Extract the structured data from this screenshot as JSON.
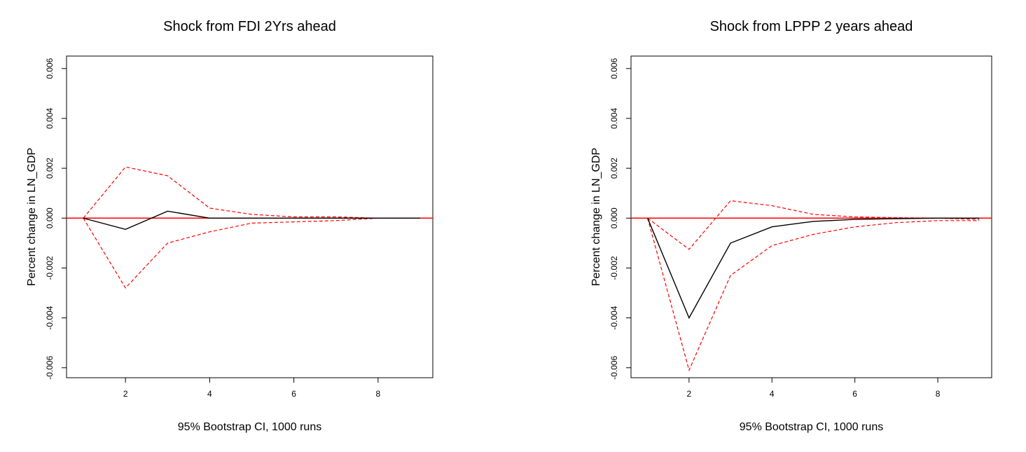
{
  "chart_data": [
    {
      "type": "line",
      "title": "Shock from FDI 2Yrs ahead",
      "xlabel": "95% Bootstrap CI,  1000 runs",
      "ylabel": "Percent change in LN_GDP",
      "xlim": [
        0.6,
        9.3
      ],
      "ylim": [
        -0.0064,
        0.0065
      ],
      "xticks": [
        2,
        4,
        6,
        8
      ],
      "xtick_labels": [
        "2",
        "4",
        "6",
        "8"
      ],
      "yticks": [
        -0.006,
        -0.004,
        -0.002,
        0,
        0.002,
        0.004,
        0.006
      ],
      "ytick_labels": [
        "-0.006",
        "-0.004",
        "-0.002",
        "0.000",
        "0.002",
        "0.004",
        "0.006"
      ],
      "grid": false,
      "reference_line": {
        "y": 0,
        "color": "#ff0000"
      },
      "x": [
        1,
        2,
        3,
        4,
        5,
        6,
        7,
        8,
        9
      ],
      "series": [
        {
          "role": "response",
          "color": "#000000",
          "style": "solid",
          "values": [
            0,
            -0.00045,
            0.00028,
            0,
            0,
            0,
            0,
            0,
            0
          ]
        },
        {
          "role": "upper",
          "color": "#ff0000",
          "style": "dashed",
          "values": [
            0,
            0.00205,
            0.0017,
            0.0004,
            0.00015,
            5e-05,
            5e-05,
            0,
            0
          ]
        },
        {
          "role": "lower",
          "color": "#ff0000",
          "style": "dashed",
          "values": [
            0,
            -0.0028,
            -0.001,
            -0.00055,
            -0.0002,
            -0.00015,
            -0.0001,
            0,
            0
          ]
        }
      ]
    },
    {
      "type": "line",
      "title": "Shock from LPPP 2 years ahead",
      "xlabel": "95% Bootstrap CI,  1000 runs",
      "ylabel": "Percent change in LN_GDP",
      "xlim": [
        0.6,
        9.3
      ],
      "ylim": [
        -0.0064,
        0.0065
      ],
      "xticks": [
        2,
        4,
        6,
        8
      ],
      "xtick_labels": [
        "2",
        "4",
        "6",
        "8"
      ],
      "yticks": [
        -0.006,
        -0.004,
        -0.002,
        0,
        0.002,
        0.004,
        0.006
      ],
      "ytick_labels": [
        "-0.006",
        "-0.004",
        "-0.002",
        "0.000",
        "0.002",
        "0.004",
        "0.006"
      ],
      "grid": false,
      "reference_line": {
        "y": 0,
        "color": "#ff0000"
      },
      "x": [
        1,
        2,
        3,
        4,
        5,
        6,
        7,
        8,
        9
      ],
      "series": [
        {
          "role": "response",
          "color": "#000000",
          "style": "solid",
          "values": [
            0,
            -0.004,
            -0.001,
            -0.00035,
            -0.00013,
            -5e-05,
            -2e-05,
            0,
            0
          ]
        },
        {
          "role": "upper",
          "color": "#ff0000",
          "style": "dashed",
          "values": [
            0,
            -0.00125,
            0.0007,
            0.0005,
            0.00015,
            5e-05,
            2e-05,
            0,
            -5e-05
          ]
        },
        {
          "role": "lower",
          "color": "#ff0000",
          "style": "dashed",
          "values": [
            0,
            -0.0061,
            -0.0023,
            -0.0011,
            -0.00065,
            -0.00035,
            -0.00018,
            -0.0001,
            -0.0001
          ]
        }
      ]
    }
  ]
}
